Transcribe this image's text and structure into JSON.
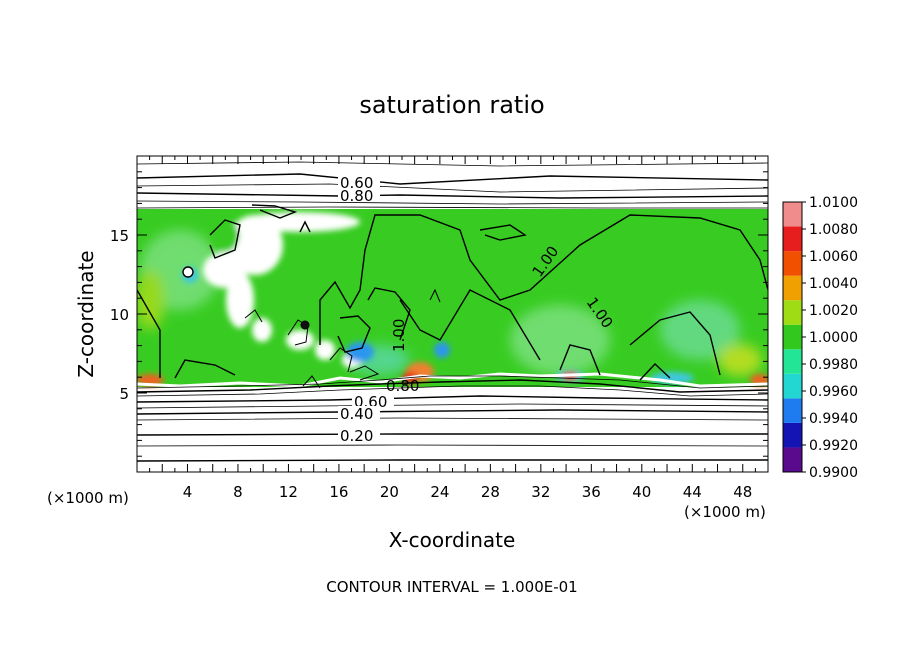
{
  "chart_data": {
    "type": "heatmap",
    "title": "saturation ratio",
    "xlabel": "X-coordinate",
    "ylabel": "Z-coordinate",
    "x_unit_note": "(×1000 m)",
    "y_unit_note": "(×1000 m)",
    "xlim": [
      0,
      50
    ],
    "ylim": [
      0,
      20
    ],
    "x_ticks": [
      4,
      8,
      12,
      16,
      20,
      24,
      28,
      32,
      36,
      40,
      44,
      48
    ],
    "y_ticks": [
      5,
      10,
      15
    ],
    "colorbar": {
      "levels": [
        "0.9900",
        "0.9920",
        "0.9940",
        "0.9960",
        "0.9980",
        "1.0000",
        "1.0020",
        "1.0040",
        "1.0060",
        "1.0080",
        "1.0100"
      ],
      "colors": [
        "#5a0a8c",
        "#1414b4",
        "#1e7cf0",
        "#22d6d2",
        "#22e696",
        "#32c81e",
        "#a0dc14",
        "#f0a000",
        "#f05000",
        "#e61e1e",
        "#f08c8c"
      ]
    },
    "contour_labels": [
      "0.60",
      "0.80",
      "1.00",
      "1.00",
      "1.00",
      "0.60",
      "0.40",
      "0.20",
      "0.80"
    ],
    "footer": "CONTOUR INTERVAL = 1.000E-01",
    "grid": false,
    "legend_position": "right"
  }
}
